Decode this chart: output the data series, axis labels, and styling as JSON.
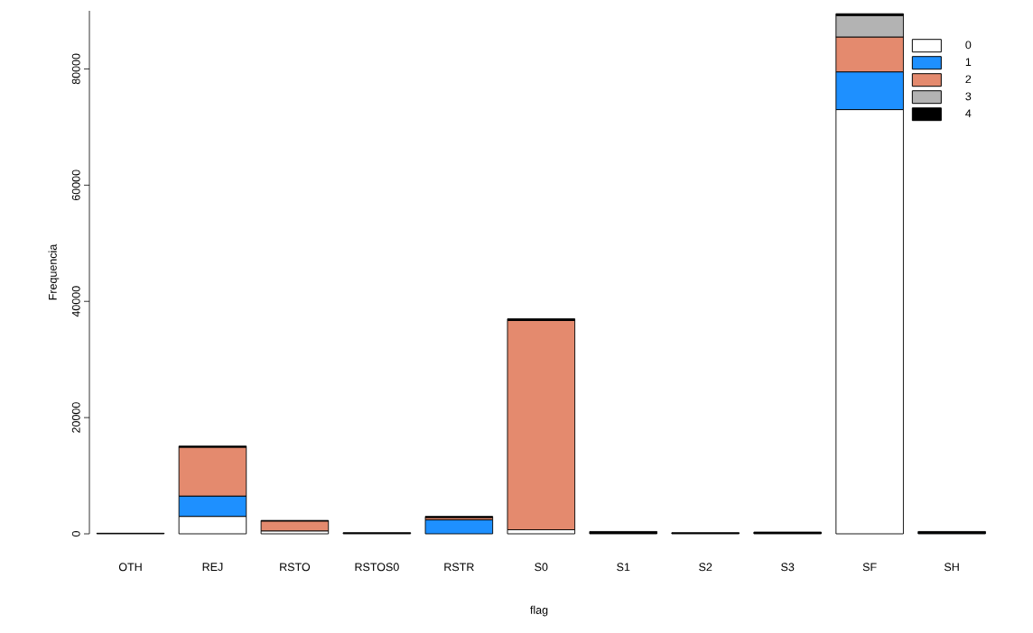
{
  "chart_data": {
    "type": "bar",
    "stacked": true,
    "xlabel": "flag",
    "ylabel": "Frequencia",
    "categories": [
      "OTH",
      "REJ",
      "RSTO",
      "RSTOS0",
      "RSTR",
      "S0",
      "S1",
      "S2",
      "S3",
      "SF",
      "SH"
    ],
    "series": [
      {
        "name": "0",
        "color": "#ffffff",
        "values": [
          0,
          3000,
          500,
          0,
          0,
          700,
          0,
          0,
          0,
          73000,
          0
        ]
      },
      {
        "name": "1",
        "color": "#1e90ff",
        "values": [
          0,
          3500,
          0,
          0,
          2400,
          0,
          0,
          0,
          0,
          6500,
          100
        ]
      },
      {
        "name": "2",
        "color": "#e48a6e",
        "values": [
          0,
          8400,
          1700,
          0,
          400,
          36000,
          0,
          0,
          0,
          6000,
          0
        ]
      },
      {
        "name": "3",
        "color": "#b3b3b3",
        "values": [
          0,
          0,
          0,
          0,
          0,
          0,
          0,
          0,
          0,
          3700,
          0
        ]
      },
      {
        "name": "4",
        "color": "#000000",
        "values": [
          100,
          200,
          100,
          200,
          200,
          300,
          400,
          200,
          300,
          300,
          300
        ]
      }
    ],
    "ylim": [
      0,
      90000
    ],
    "yticks": [
      0,
      20000,
      40000,
      60000,
      80000
    ],
    "grid": false,
    "legend": "top right"
  }
}
